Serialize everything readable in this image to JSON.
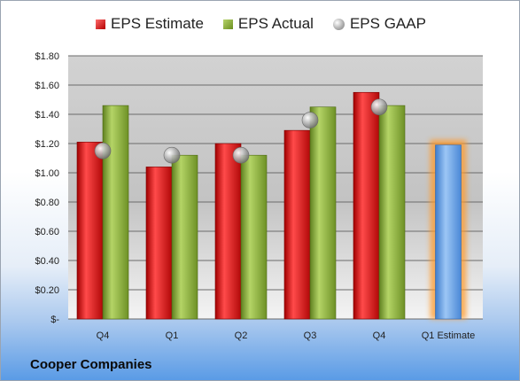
{
  "chart_data": {
    "type": "bar",
    "title": "",
    "xlabel": "",
    "ylabel": "",
    "categories": [
      "Q4",
      "Q1",
      "Q2",
      "Q3",
      "Q4",
      "Q1 Estimate"
    ],
    "ylim": [
      0,
      1.8
    ],
    "y_ticks": [
      "$-",
      "$0.20",
      "$0.40",
      "$0.60",
      "$0.80",
      "$1.00",
      "$1.20",
      "$1.40",
      "$1.60",
      "$1.80"
    ],
    "series": [
      {
        "name": "EPS Estimate",
        "kind": "bar",
        "color": "#c81e1e",
        "values": [
          1.21,
          1.04,
          1.2,
          1.29,
          1.55,
          null
        ]
      },
      {
        "name": "EPS Actual",
        "kind": "bar",
        "color": "#8fb33a",
        "values": [
          1.46,
          1.12,
          1.12,
          1.45,
          1.46,
          null
        ]
      },
      {
        "name": "EPS GAAP",
        "kind": "marker",
        "color": "#a8a8a8",
        "values": [
          1.15,
          1.12,
          1.12,
          1.36,
          1.45,
          null
        ]
      },
      {
        "name": "",
        "kind": "highlighted-bar",
        "color": "#6aa6e8",
        "values": [
          null,
          null,
          null,
          null,
          null,
          1.19
        ]
      }
    ],
    "legend_position": "top",
    "grid": true
  },
  "company_label": "Cooper Companies"
}
